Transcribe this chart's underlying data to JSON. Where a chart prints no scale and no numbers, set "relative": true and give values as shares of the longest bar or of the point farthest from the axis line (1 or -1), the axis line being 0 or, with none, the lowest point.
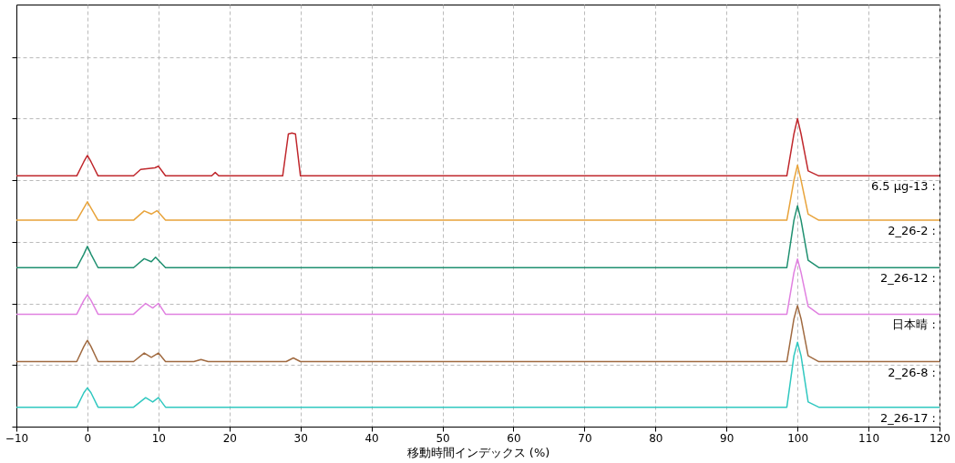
{
  "chart_data": {
    "type": "line",
    "relative": true,
    "xlabel": "移動時間インデックス (%)",
    "xlim": [
      -10,
      120
    ],
    "xticks": [
      -10,
      0,
      10,
      20,
      30,
      40,
      50,
      60,
      70,
      80,
      90,
      100,
      110,
      120
    ],
    "grid": true,
    "legend": false,
    "marker": "none",
    "line_style": "solid",
    "series": [
      {
        "name": "6.5 μg-13 :",
        "color": "#c0282d",
        "x": [
          -10,
          -1.5,
          -0.5,
          0,
          0.5,
          1.5,
          6.5,
          7.5,
          9.5,
          10,
          11,
          17.5,
          18,
          18.5,
          27.5,
          28.3,
          28.8,
          29.3,
          30,
          98.5,
          99.5,
          100,
          100.5,
          101.5,
          103,
          120
        ],
        "values": [
          0.814,
          0.814,
          0.86,
          0.88,
          0.86,
          0.814,
          0.814,
          0.835,
          0.84,
          0.845,
          0.814,
          0.814,
          0.825,
          0.814,
          0.814,
          0.95,
          0.953,
          0.95,
          0.814,
          0.814,
          0.95,
          1.0,
          0.95,
          0.83,
          0.814,
          0.814
        ]
      },
      {
        "name": "2_26-2 :",
        "color": "#e8a33a",
        "x": [
          -10,
          -1.5,
          -0.5,
          0,
          0.5,
          1.5,
          6.5,
          8,
          9,
          9.8,
          11,
          12,
          98.5,
          99.5,
          100,
          100.5,
          101.5,
          103,
          120
        ],
        "values": [
          0.67,
          0.67,
          0.71,
          0.73,
          0.71,
          0.67,
          0.67,
          0.7,
          0.69,
          0.701,
          0.67,
          0.67,
          0.67,
          0.8,
          0.849,
          0.8,
          0.69,
          0.67,
          0.67
        ]
      },
      {
        "name": "2_26-12 :",
        "color": "#1f9070",
        "x": [
          -10,
          -1.5,
          -0.5,
          0,
          0.5,
          1.5,
          6.5,
          8,
          9,
          9.6,
          11,
          12,
          98.5,
          99.5,
          100,
          100.5,
          101.5,
          103,
          120
        ],
        "values": [
          0.516,
          0.516,
          0.56,
          0.585,
          0.56,
          0.516,
          0.516,
          0.545,
          0.535,
          0.55,
          0.516,
          0.516,
          0.516,
          0.67,
          0.717,
          0.67,
          0.54,
          0.516,
          0.516
        ]
      },
      {
        "name": "日本晴 :",
        "color": "#e080e0",
        "x": [
          -10,
          -1.5,
          -0.5,
          0,
          0.5,
          1.5,
          6.5,
          8.2,
          9.2,
          10,
          11,
          12,
          98.5,
          99.5,
          100,
          100.5,
          101.5,
          103,
          120
        ],
        "values": [
          0.365,
          0.365,
          0.41,
          0.428,
          0.41,
          0.365,
          0.365,
          0.4,
          0.385,
          0.4,
          0.365,
          0.365,
          0.365,
          0.5,
          0.544,
          0.5,
          0.39,
          0.365,
          0.365
        ]
      },
      {
        "name": "2_26-8 :",
        "color": "#a06a40",
        "x": [
          -10,
          -1.5,
          -0.5,
          0,
          0.5,
          1.5,
          6.5,
          8,
          9,
          10,
          11,
          15,
          16,
          17,
          28,
          29,
          30,
          98.5,
          99.5,
          100,
          100.5,
          101.5,
          103,
          120
        ],
        "values": [
          0.211,
          0.211,
          0.26,
          0.28,
          0.26,
          0.211,
          0.211,
          0.239,
          0.225,
          0.239,
          0.211,
          0.211,
          0.218,
          0.211,
          0.211,
          0.223,
          0.211,
          0.211,
          0.35,
          0.393,
          0.35,
          0.23,
          0.211,
          0.211
        ]
      },
      {
        "name": "2_26-17 :",
        "color": "#30c8c0",
        "x": [
          -10,
          -1.5,
          -0.5,
          0,
          0.5,
          1.5,
          6.5,
          8.2,
          9.2,
          10,
          11,
          12,
          98.5,
          99.5,
          100,
          100.5,
          101.5,
          103,
          120
        ],
        "values": [
          0.063,
          0.063,
          0.11,
          0.126,
          0.11,
          0.063,
          0.063,
          0.094,
          0.08,
          0.094,
          0.063,
          0.063,
          0.063,
          0.23,
          0.274,
          0.23,
          0.08,
          0.063,
          0.063
        ]
      }
    ]
  }
}
